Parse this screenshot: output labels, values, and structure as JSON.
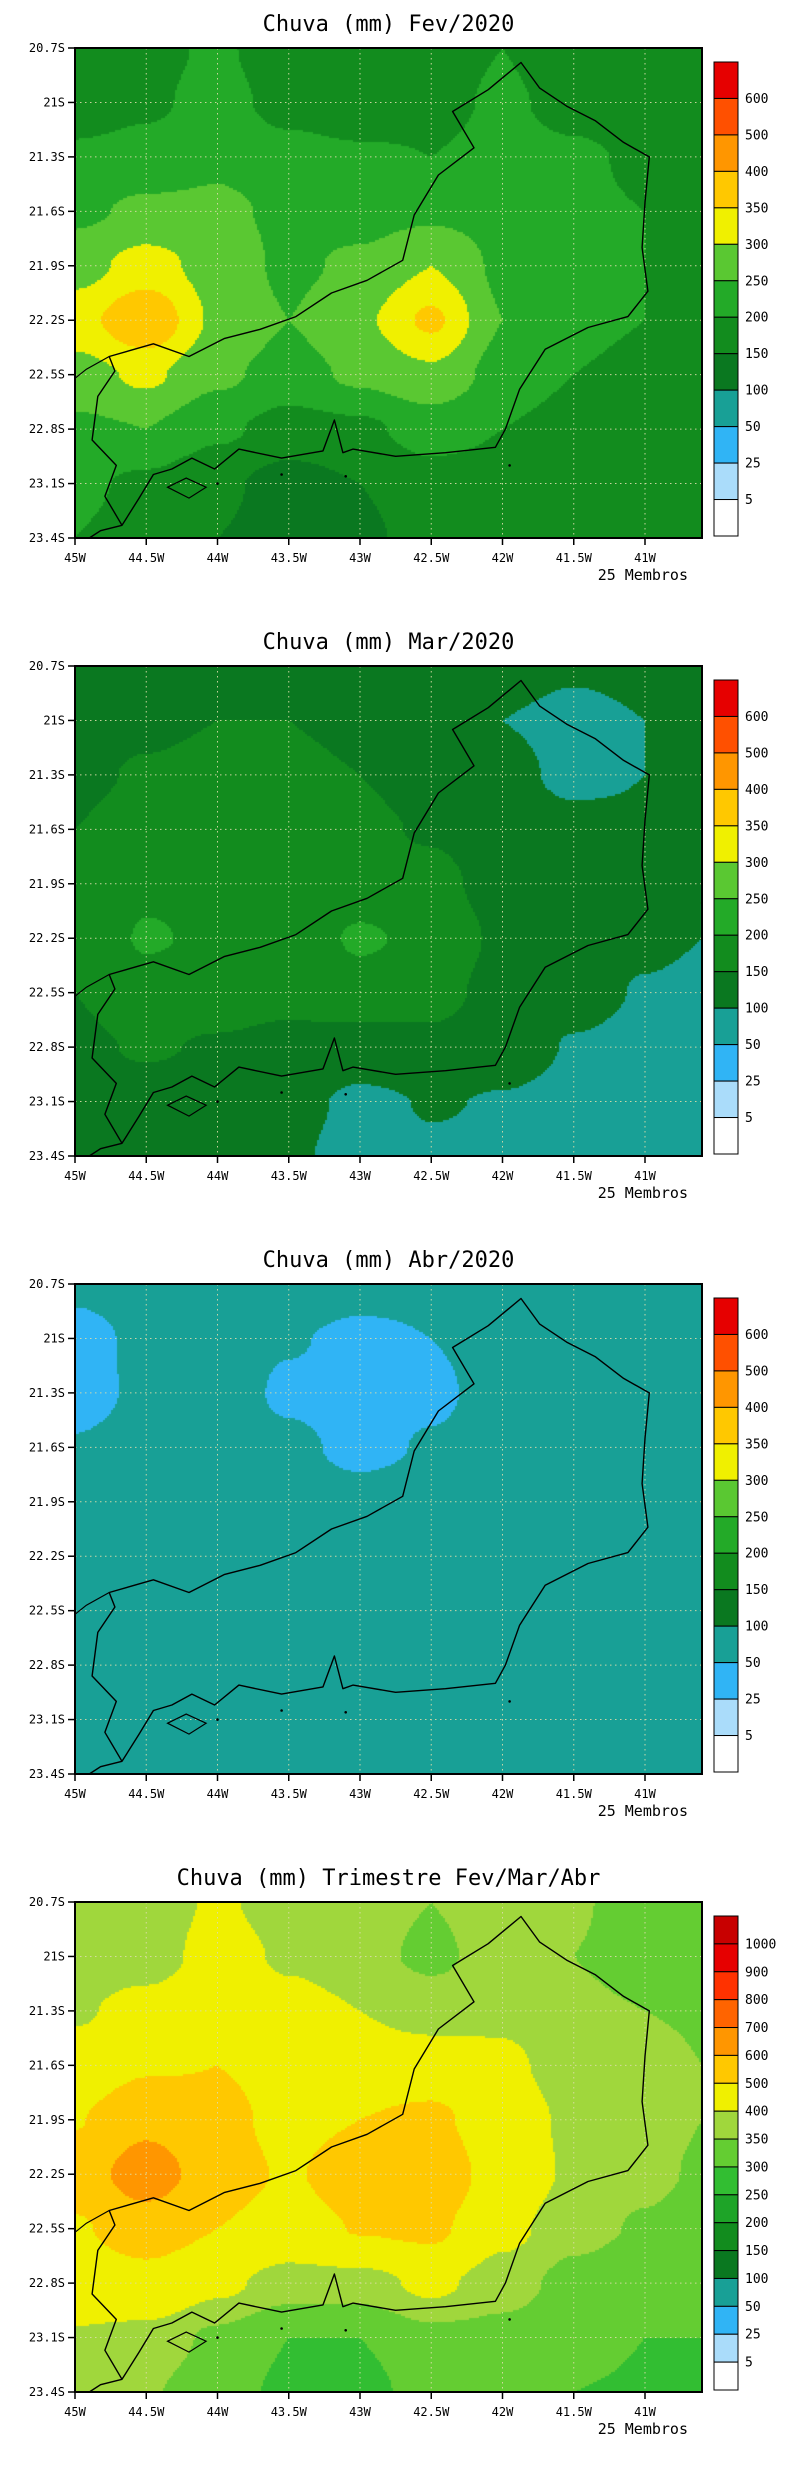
{
  "figure": {
    "background": "#ffffff",
    "members_label": "25 Membros",
    "x_tick_labels": [
      "45W",
      "44.5W",
      "44W",
      "43.5W",
      "43W",
      "42.5W",
      "42W",
      "41.5W",
      "41W"
    ],
    "y_tick_labels": [
      "20.7S",
      "21S",
      "21.3S",
      "21.6S",
      "21.9S",
      "22.2S",
      "22.5S",
      "22.8S",
      "23.1S",
      "23.4S"
    ],
    "x_tick_lons": [
      -45,
      -44.5,
      -44,
      -43.5,
      -43,
      -42.5,
      -42,
      -41.5,
      -41
    ],
    "y_tick_lats": [
      -20.7,
      -21,
      -21.3,
      -21.6,
      -21.9,
      -22.2,
      -22.5,
      -22.8,
      -23.1,
      -23.4
    ]
  },
  "map_outline": {
    "mainland": [
      [
        -44.67,
        -23.33
      ],
      [
        -44.79,
        -23.17
      ],
      [
        -44.71,
        -23.0
      ],
      [
        -44.88,
        -22.86
      ],
      [
        -44.84,
        -22.62
      ],
      [
        -44.72,
        -22.48
      ],
      [
        -44.76,
        -22.4
      ],
      [
        -44.45,
        -22.33
      ],
      [
        -44.2,
        -22.4
      ],
      [
        -43.95,
        -22.3
      ],
      [
        -43.7,
        -22.25
      ],
      [
        -43.45,
        -22.18
      ],
      [
        -43.2,
        -22.05
      ],
      [
        -42.95,
        -21.98
      ],
      [
        -42.7,
        -21.87
      ],
      [
        -42.62,
        -21.62
      ],
      [
        -42.45,
        -21.4
      ],
      [
        -42.2,
        -21.25
      ],
      [
        -42.35,
        -21.05
      ],
      [
        -42.1,
        -20.93
      ],
      [
        -41.87,
        -20.78
      ],
      [
        -41.74,
        -20.92
      ],
      [
        -41.55,
        -21.02
      ],
      [
        -41.35,
        -21.1
      ],
      [
        -41.15,
        -21.22
      ],
      [
        -40.97,
        -21.3
      ],
      [
        -41.0,
        -21.55
      ],
      [
        -41.02,
        -21.8
      ],
      [
        -40.98,
        -22.04
      ],
      [
        -41.12,
        -22.18
      ],
      [
        -41.4,
        -22.24
      ],
      [
        -41.7,
        -22.36
      ],
      [
        -41.88,
        -22.58
      ],
      [
        -41.98,
        -22.8
      ],
      [
        -42.05,
        -22.9
      ],
      [
        -42.4,
        -22.93
      ],
      [
        -42.75,
        -22.95
      ],
      [
        -43.05,
        -22.91
      ],
      [
        -43.12,
        -22.93
      ],
      [
        -43.18,
        -22.75
      ],
      [
        -43.26,
        -22.92
      ],
      [
        -43.55,
        -22.96
      ],
      [
        -43.85,
        -22.91
      ],
      [
        -44.02,
        -23.02
      ],
      [
        -44.18,
        -22.96
      ],
      [
        -44.32,
        -23.02
      ],
      [
        -44.45,
        -23.05
      ],
      [
        -44.55,
        -23.18
      ]
    ],
    "ilha_grande": [
      [
        -44.35,
        -23.12
      ],
      [
        -44.22,
        -23.07
      ],
      [
        -44.08,
        -23.12
      ],
      [
        -44.2,
        -23.18
      ]
    ],
    "coast_extension": [
      [
        -44.67,
        -23.33
      ],
      [
        -44.82,
        -23.36
      ],
      [
        -44.9,
        -23.4
      ]
    ],
    "mg_sp_border": [
      [
        -44.76,
        -22.4
      ],
      [
        -44.92,
        -22.47
      ],
      [
        -45.0,
        -22.52
      ]
    ],
    "island_dots": [
      [
        -43.1,
        -23.06
      ],
      [
        -44.0,
        -23.1
      ],
      [
        -41.95,
        -23.0
      ],
      [
        -43.55,
        -23.05
      ]
    ]
  },
  "chart_data": [
    {
      "type": "heatmap",
      "title": "Chuva (mm) Fev/2020",
      "annotation": "25 Membros",
      "units": "mm",
      "x_tick_labels": [
        "45W",
        "44.5W",
        "44W",
        "43.5W",
        "43W",
        "42.5W",
        "42W",
        "41.5W",
        "41W"
      ],
      "y_tick_labels": [
        "20.7S",
        "21S",
        "21.3S",
        "21.6S",
        "21.9S",
        "22.2S",
        "22.5S",
        "22.8S",
        "23.1S",
        "23.4S"
      ],
      "lon_range": [
        -45,
        -40.6
      ],
      "lat_range": [
        -20.7,
        -23.4
      ],
      "levels": [
        5,
        25,
        50,
        100,
        150,
        200,
        250,
        300,
        350,
        400,
        500,
        600
      ],
      "colors": [
        "#ffffff",
        "#aadcfa",
        "#30b4f5",
        "#18a096",
        "#0a7820",
        "#128c1e",
        "#23aa28",
        "#5ac832",
        "#f0f000",
        "#ffc800",
        "#ff9600",
        "#ff5000",
        "#e60000"
      ],
      "grid_lon": [
        -45,
        -44.5,
        -44,
        -43.5,
        -43,
        -42.5,
        -42,
        -41.5,
        -41,
        -40.6
      ],
      "grid_lat": [
        -20.7,
        -21,
        -21.3,
        -21.6,
        -21.9,
        -22.2,
        -22.5,
        -22.8,
        -23.1,
        -23.4
      ],
      "values": [
        [
          160,
          180,
          210,
          160,
          150,
          170,
          200,
          160,
          150,
          155
        ],
        [
          170,
          190,
          220,
          180,
          160,
          180,
          210,
          180,
          160,
          165
        ],
        [
          210,
          220,
          240,
          220,
          210,
          200,
          220,
          210,
          190,
          180
        ],
        [
          240,
          260,
          260,
          240,
          230,
          240,
          230,
          210,
          200,
          190
        ],
        [
          280,
          320,
          280,
          240,
          260,
          300,
          240,
          210,
          200,
          190
        ],
        [
          330,
          395,
          290,
          250,
          290,
          360,
          250,
          210,
          200,
          190
        ],
        [
          280,
          310,
          260,
          230,
          260,
          290,
          230,
          200,
          190,
          180
        ],
        [
          240,
          250,
          210,
          180,
          190,
          220,
          200,
          180,
          170,
          170
        ],
        [
          210,
          190,
          160,
          130,
          150,
          180,
          180,
          170,
          160,
          160
        ],
        [
          200,
          180,
          150,
          130,
          140,
          170,
          170,
          160,
          160,
          160
        ]
      ]
    },
    {
      "type": "heatmap",
      "title": "Chuva (mm) Mar/2020",
      "annotation": "25 Membros",
      "units": "mm",
      "x_tick_labels": [
        "45W",
        "44.5W",
        "44W",
        "43.5W",
        "43W",
        "42.5W",
        "42W",
        "41.5W",
        "41W"
      ],
      "y_tick_labels": [
        "20.7S",
        "21S",
        "21.3S",
        "21.6S",
        "21.9S",
        "22.2S",
        "22.5S",
        "22.8S",
        "23.1S",
        "23.4S"
      ],
      "lon_range": [
        -45,
        -40.6
      ],
      "lat_range": [
        -20.7,
        -23.4
      ],
      "levels": [
        5,
        25,
        50,
        100,
        150,
        200,
        250,
        300,
        350,
        400,
        500,
        600
      ],
      "colors": [
        "#ffffff",
        "#aadcfa",
        "#30b4f5",
        "#18a096",
        "#0a7820",
        "#128c1e",
        "#23aa28",
        "#5ac832",
        "#f0f000",
        "#ffc800",
        "#ff9600",
        "#ff5000",
        "#e60000"
      ],
      "grid_lon": [
        -45,
        -44.5,
        -44,
        -43.5,
        -43,
        -42.5,
        -42,
        -41.5,
        -41,
        -40.6
      ],
      "grid_lat": [
        -20.7,
        -21,
        -21.3,
        -21.6,
        -21.9,
        -22.2,
        -22.5,
        -22.8,
        -23.1,
        -23.4
      ],
      "values": [
        [
          130,
          135,
          140,
          145,
          140,
          130,
          115,
          105,
          110,
          115
        ],
        [
          135,
          140,
          150,
          150,
          140,
          120,
          100,
          90,
          100,
          105
        ],
        [
          140,
          155,
          165,
          160,
          150,
          130,
          110,
          92,
          100,
          105
        ],
        [
          150,
          170,
          180,
          170,
          160,
          145,
          120,
          110,
          105,
          100
        ],
        [
          155,
          190,
          185,
          170,
          180,
          165,
          130,
          120,
          105,
          100
        ],
        [
          160,
          205,
          190,
          175,
          205,
          190,
          140,
          120,
          105,
          100
        ],
        [
          150,
          180,
          175,
          165,
          185,
          170,
          130,
          110,
          98,
          95
        ],
        [
          140,
          155,
          145,
          135,
          125,
          135,
          115,
          98,
          92,
          90
        ],
        [
          130,
          130,
          120,
          112,
          92,
          102,
          98,
          92,
          88,
          85
        ],
        [
          125,
          120,
          112,
          105,
          88,
          96,
          94,
          88,
          84,
          82
        ]
      ]
    },
    {
      "type": "heatmap",
      "title": "Chuva (mm) Abr/2020",
      "annotation": "25 Membros",
      "units": "mm",
      "x_tick_labels": [
        "45W",
        "44.5W",
        "44W",
        "43.5W",
        "43W",
        "42.5W",
        "42W",
        "41.5W",
        "41W"
      ],
      "y_tick_labels": [
        "20.7S",
        "21S",
        "21.3S",
        "21.6S",
        "21.9S",
        "22.2S",
        "22.5S",
        "22.8S",
        "23.1S",
        "23.4S"
      ],
      "lon_range": [
        -45,
        -40.6
      ],
      "lat_range": [
        -20.7,
        -23.4
      ],
      "levels": [
        5,
        25,
        50,
        100,
        150,
        200,
        250,
        300,
        350,
        400,
        500,
        600
      ],
      "colors": [
        "#ffffff",
        "#aadcfa",
        "#30b4f5",
        "#18a096",
        "#0a7820",
        "#128c1e",
        "#23aa28",
        "#5ac832",
        "#f0f000",
        "#ffc800",
        "#ff9600",
        "#ff5000",
        "#e60000"
      ],
      "grid_lon": [
        -45,
        -44.5,
        -44,
        -43.5,
        -43,
        -42.5,
        -42,
        -41.5,
        -41,
        -40.6
      ],
      "grid_lat": [
        -20.7,
        -21,
        -21.3,
        -21.6,
        -21.9,
        -22.2,
        -22.5,
        -22.8,
        -23.1,
        -23.4
      ],
      "values": [
        [
          55,
          62,
          68,
          66,
          60,
          58,
          60,
          62,
          62,
          62
        ],
        [
          42,
          55,
          62,
          52,
          44,
          50,
          58,
          62,
          62,
          62
        ],
        [
          40,
          55,
          62,
          46,
          38,
          46,
          58,
          60,
          60,
          60
        ],
        [
          52,
          60,
          62,
          55,
          44,
          52,
          60,
          60,
          60,
          60
        ],
        [
          58,
          64,
          66,
          62,
          58,
          60,
          62,
          60,
          58,
          58
        ],
        [
          60,
          65,
          66,
          63,
          60,
          62,
          62,
          58,
          56,
          56
        ],
        [
          60,
          62,
          63,
          62,
          60,
          60,
          58,
          56,
          55,
          55
        ],
        [
          58,
          60,
          62,
          60,
          58,
          58,
          56,
          55,
          54,
          54
        ],
        [
          56,
          58,
          58,
          57,
          56,
          55,
          55,
          54,
          53,
          53
        ],
        [
          55,
          56,
          57,
          56,
          55,
          54,
          54,
          53,
          52,
          52
        ]
      ]
    },
    {
      "type": "heatmap",
      "title": "Chuva (mm) Trimestre Fev/Mar/Abr",
      "annotation": "25 Membros",
      "units": "mm",
      "x_tick_labels": [
        "45W",
        "44.5W",
        "44W",
        "43.5W",
        "43W",
        "42.5W",
        "42W",
        "41.5W",
        "41W"
      ],
      "y_tick_labels": [
        "20.7S",
        "21S",
        "21.3S",
        "21.6S",
        "21.9S",
        "22.2S",
        "22.5S",
        "22.8S",
        "23.1S",
        "23.4S"
      ],
      "lon_range": [
        -45,
        -40.6
      ],
      "lat_range": [
        -20.7,
        -23.4
      ],
      "levels": [
        5,
        25,
        50,
        100,
        150,
        200,
        250,
        300,
        350,
        400,
        500,
        600,
        700,
        800,
        900,
        1000
      ],
      "colors": [
        "#ffffff",
        "#aadcfa",
        "#30b4f5",
        "#18a096",
        "#0a7820",
        "#128c1e",
        "#1ea428",
        "#32be32",
        "#64cd32",
        "#a0d73c",
        "#f0f000",
        "#ffc800",
        "#ff9600",
        "#ff6400",
        "#ff3200",
        "#e60000",
        "#c80000"
      ],
      "grid_lon": [
        -45,
        -44.5,
        -44,
        -43.5,
        -43,
        -42.5,
        -42,
        -41.5,
        -41,
        -40.6
      ],
      "grid_lat": [
        -20.7,
        -21,
        -21.3,
        -21.6,
        -21.9,
        -22.2,
        -22.5,
        -22.8,
        -23.1,
        -23.4
      ],
      "values": [
        [
          355,
          360,
          410,
          370,
          370,
          350,
          375,
          355,
          330,
          335
        ],
        [
          355,
          365,
          430,
          390,
          365,
          340,
          370,
          350,
          330,
          335
        ],
        [
          390,
          430,
          465,
          425,
          400,
          375,
          390,
          360,
          350,
          345
        ],
        [
          440,
          490,
          500,
          465,
          435,
          435,
          410,
          380,
          365,
          350
        ],
        [
          495,
          575,
          530,
          470,
          500,
          525,
          430,
          390,
          365,
          350
        ],
        [
          550,
          650,
          545,
          490,
          555,
          575,
          450,
          390,
          360,
          345
        ],
        [
          490,
          550,
          500,
          455,
          505,
          520,
          420,
          365,
          345,
          330
        ],
        [
          440,
          465,
          415,
          375,
          375,
          415,
          370,
          335,
          315,
          315
        ],
        [
          395,
          380,
          340,
          300,
          300,
          335,
          335,
          315,
          300,
          300
        ],
        [
          380,
          355,
          320,
          290,
          285,
          320,
          320,
          300,
          295,
          295
        ]
      ]
    }
  ]
}
